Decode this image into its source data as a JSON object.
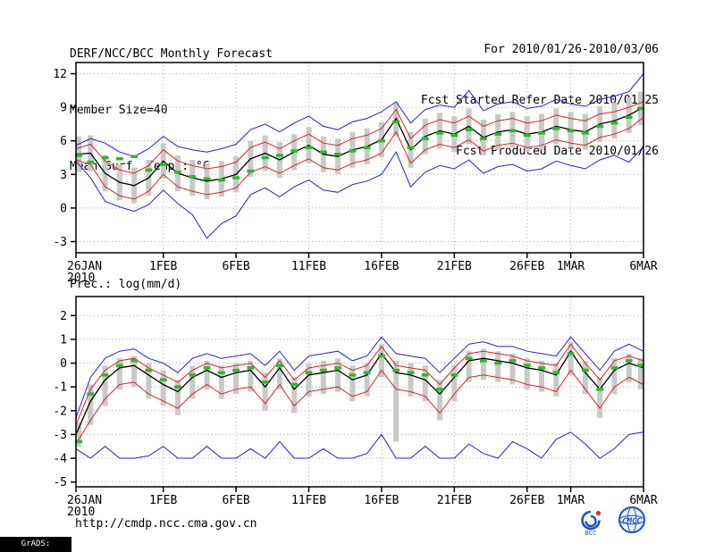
{
  "header": {
    "title": "DERF/NCC/BCC Monthly Forecast",
    "member_size": "Member Size=40",
    "for_range": "For 2010/01/26-2010/03/06",
    "fcst_refer": "Fcst Started Refer Date 2010/01/25",
    "fcst_produced": "Fcst Produced Date 2010/01/26"
  },
  "footer": {
    "url": "http://cmdp.ncc.cma.gov.cn",
    "grads_credit": "GrADS: COLA/IGES",
    "logos": [
      {
        "name": "BCC"
      },
      {
        "name": "CMCC"
      }
    ]
  },
  "colors": {
    "frame": "#000000",
    "grid": "#aaaaaa",
    "bar": "#c9c9c9",
    "dash": "#2eb82e",
    "mean": "#000000",
    "quartile": "#dd2222",
    "extreme": "#2222cc",
    "logo_blue": "#1a53c9",
    "logo_red": "#e03030"
  },
  "chart_data": [
    {
      "id": "temperature",
      "type": "line",
      "title": "Mean Surf. Temp.: °C",
      "ylim": [
        -4,
        13
      ],
      "yticks": [
        -3,
        0,
        3,
        6,
        9,
        12
      ],
      "x_days": 39,
      "xticks": [
        {
          "label": "26JAN",
          "sub": "2010",
          "day": 0
        },
        {
          "label": "1FEB",
          "day": 6
        },
        {
          "label": "6FEB",
          "day": 11
        },
        {
          "label": "11FEB",
          "day": 16
        },
        {
          "label": "16FEB",
          "day": 21
        },
        {
          "label": "21FEB",
          "day": 26
        },
        {
          "label": "26FEB",
          "day": 31
        },
        {
          "label": "1MAR",
          "day": 34
        },
        {
          "label": "6MAR",
          "day": 39
        }
      ],
      "series": [
        {
          "name": "ensemble-max",
          "color": "#2222cc",
          "width": 1,
          "values": [
            5.6,
            6.2,
            5.8,
            5.0,
            4.6,
            5.3,
            6.4,
            5.5,
            5.2,
            5.0,
            5.3,
            5.7,
            7.0,
            7.5,
            6.8,
            7.6,
            8.2,
            7.3,
            7.0,
            7.7,
            8.0,
            8.6,
            9.5,
            7.6,
            8.8,
            9.2,
            9.0,
            10.5,
            8.7,
            9.3,
            9.5,
            8.9,
            9.1,
            9.7,
            9.3,
            9.1,
            9.7,
            10.0,
            10.4,
            12.0
          ]
        },
        {
          "name": "ensemble-min",
          "color": "#2222cc",
          "width": 1,
          "values": [
            4.2,
            2.7,
            0.6,
            0.1,
            -0.3,
            0.3,
            1.6,
            0.4,
            -0.6,
            -2.7,
            -1.4,
            -0.7,
            1.2,
            1.8,
            1.0,
            1.9,
            2.5,
            1.6,
            1.4,
            2.1,
            2.4,
            3.0,
            5.0,
            1.9,
            3.2,
            3.8,
            3.5,
            4.3,
            3.1,
            3.7,
            3.9,
            3.3,
            3.5,
            4.2,
            3.8,
            3.5,
            4.3,
            4.7,
            4.1,
            5.5
          ]
        },
        {
          "name": "upper-quartile",
          "color": "#dd2222",
          "width": 1,
          "values": [
            5.3,
            5.7,
            4.2,
            3.4,
            3.1,
            3.8,
            5.2,
            4.2,
            3.8,
            3.5,
            3.7,
            4.1,
            5.4,
            5.9,
            5.3,
            6.0,
            6.6,
            5.8,
            5.6,
            6.2,
            6.5,
            7.1,
            8.8,
            6.2,
            7.4,
            7.9,
            7.6,
            8.2,
            7.3,
            7.8,
            8.0,
            7.6,
            7.8,
            8.3,
            8.0,
            7.8,
            8.4,
            8.6,
            9.0,
            9.5
          ]
        },
        {
          "name": "lower-quartile",
          "color": "#dd2222",
          "width": 1,
          "values": [
            4.3,
            3.9,
            1.9,
            1.1,
            0.8,
            1.5,
            3.0,
            1.9,
            1.5,
            1.2,
            1.4,
            1.8,
            3.2,
            3.7,
            3.1,
            3.8,
            4.4,
            3.6,
            3.4,
            4.0,
            4.3,
            4.9,
            6.8,
            4.0,
            5.2,
            5.7,
            5.4,
            6.1,
            5.1,
            5.6,
            5.8,
            5.4,
            5.6,
            6.1,
            5.8,
            5.6,
            6.3,
            6.6,
            7.1,
            8.1
          ]
        },
        {
          "name": "ensemble-mean",
          "color": "#000000",
          "width": 1.3,
          "values": [
            4.8,
            4.9,
            3.1,
            2.3,
            2.0,
            2.7,
            4.2,
            3.1,
            2.7,
            2.4,
            2.6,
            3.0,
            4.4,
            4.9,
            4.3,
            5.0,
            5.6,
            4.8,
            4.6,
            5.2,
            5.5,
            6.1,
            8.0,
            5.2,
            6.4,
            6.9,
            6.6,
            7.3,
            6.3,
            6.8,
            7.0,
            6.6,
            6.8,
            7.3,
            7.0,
            6.8,
            7.5,
            7.8,
            8.3,
            9.0
          ]
        }
      ],
      "bars": {
        "name": "ensemble-spread",
        "top": [
          6.4,
          6.5,
          4.7,
          3.9,
          3.6,
          4.3,
          5.8,
          4.7,
          4.3,
          4.0,
          4.2,
          4.6,
          6.0,
          6.5,
          5.9,
          6.6,
          7.2,
          6.4,
          6.2,
          6.8,
          7.1,
          7.7,
          9.4,
          6.8,
          8.0,
          8.5,
          8.2,
          8.9,
          7.9,
          8.4,
          8.6,
          8.2,
          8.4,
          8.9,
          8.6,
          8.4,
          9.1,
          9.4,
          9.9,
          10.4
        ],
        "bottom": [
          3.2,
          3.3,
          1.5,
          0.7,
          0.4,
          1.1,
          2.6,
          1.5,
          1.1,
          0.8,
          1.0,
          1.4,
          2.8,
          3.3,
          2.7,
          3.4,
          4.0,
          3.2,
          3.0,
          3.6,
          3.9,
          4.5,
          6.4,
          3.6,
          4.8,
          5.3,
          5.0,
          5.7,
          4.7,
          5.2,
          5.4,
          5.0,
          5.2,
          5.7,
          5.4,
          5.2,
          5.9,
          6.2,
          6.7,
          7.4
        ]
      },
      "dashes": {
        "name": "median-dash",
        "values": [
          4.7,
          4.1,
          4.5,
          4.4,
          4.6,
          3.4,
          3.9,
          3.2,
          2.8,
          2.6,
          2.5,
          2.7,
          3.3,
          4.5,
          4.7,
          5.1,
          5.4,
          5.0,
          4.8,
          5.1,
          5.4,
          6.0,
          7.7,
          5.4,
          6.2,
          6.7,
          6.5,
          7.0,
          6.2,
          6.6,
          6.9,
          6.5,
          6.7,
          7.1,
          6.9,
          6.7,
          7.3,
          7.6,
          8.1,
          8.9
        ]
      }
    },
    {
      "id": "precipitation",
      "type": "line",
      "title": "Prec.: log(mm/d)",
      "ylim": [
        -5.2,
        2.8
      ],
      "yticks": [
        -5,
        -4,
        -3,
        -2,
        -1,
        0,
        1,
        2
      ],
      "x_days": 39,
      "xticks": [
        {
          "label": "26JAN",
          "sub": "2010",
          "day": 0
        },
        {
          "label": "1FEB",
          "day": 6
        },
        {
          "label": "6FEB",
          "day": 11
        },
        {
          "label": "11FEB",
          "day": 16
        },
        {
          "label": "16FEB",
          "day": 21
        },
        {
          "label": "21FEB",
          "day": 26
        },
        {
          "label": "26FEB",
          "day": 31
        },
        {
          "label": "1MAR",
          "day": 34
        },
        {
          "label": "6MAR",
          "day": 39
        }
      ],
      "series": [
        {
          "name": "ensemble-max",
          "color": "#2222cc",
          "width": 1,
          "values": [
            -2.3,
            -0.6,
            0.2,
            0.5,
            0.6,
            0.2,
            0.0,
            -0.4,
            0.2,
            0.4,
            0.2,
            0.3,
            0.4,
            -0.1,
            0.5,
            -0.3,
            0.3,
            0.4,
            0.5,
            0.1,
            0.3,
            1.1,
            0.4,
            0.3,
            0.2,
            -0.4,
            0.2,
            0.8,
            0.9,
            0.7,
            0.7,
            0.5,
            0.4,
            0.3,
            1.1,
            0.4,
            -0.3,
            0.5,
            0.8,
            0.5
          ]
        },
        {
          "name": "ensemble-min",
          "color": "#2222cc",
          "width": 1,
          "values": [
            -3.6,
            -4.0,
            -3.5,
            -4.0,
            -4.0,
            -3.9,
            -3.5,
            -4.0,
            -4.0,
            -3.5,
            -4.0,
            -4.0,
            -3.6,
            -4.0,
            -3.3,
            -4.0,
            -4.0,
            -3.6,
            -4.0,
            -4.0,
            -3.8,
            -3.0,
            -4.0,
            -4.0,
            -3.5,
            -4.0,
            -4.0,
            -3.4,
            -3.8,
            -4.0,
            -3.3,
            -3.6,
            -4.0,
            -3.2,
            -2.9,
            -3.4,
            -4.0,
            -3.6,
            -3.0,
            -2.9
          ]
        },
        {
          "name": "upper-quartile",
          "color": "#dd2222",
          "width": 1,
          "values": [
            -2.6,
            -1.1,
            -0.3,
            0.1,
            0.2,
            -0.2,
            -0.5,
            -0.8,
            -0.3,
            0.0,
            -0.2,
            -0.1,
            0.0,
            -0.6,
            0.1,
            -0.7,
            -0.2,
            -0.1,
            0.0,
            -0.3,
            -0.1,
            0.7,
            -0.1,
            -0.2,
            -0.3,
            -0.9,
            -0.2,
            0.4,
            0.5,
            0.4,
            0.3,
            0.1,
            0.0,
            -0.1,
            0.8,
            0.0,
            -0.7,
            0.1,
            0.3,
            0.1
          ]
        },
        {
          "name": "lower-quartile",
          "color": "#dd2222",
          "width": 1,
          "values": [
            -3.4,
            -2.4,
            -1.5,
            -0.9,
            -0.8,
            -1.3,
            -1.6,
            -1.9,
            -1.3,
            -0.9,
            -1.3,
            -1.1,
            -1.0,
            -1.7,
            -0.9,
            -1.8,
            -1.2,
            -1.1,
            -1.0,
            -1.4,
            -1.2,
            -0.3,
            -1.1,
            -1.2,
            -1.4,
            -2.1,
            -1.3,
            -0.6,
            -0.5,
            -0.6,
            -0.7,
            -0.9,
            -1.0,
            -1.2,
            -0.3,
            -1.1,
            -1.9,
            -1.0,
            -0.6,
            -0.9
          ]
        },
        {
          "name": "ensemble-mean",
          "color": "#000000",
          "width": 1.3,
          "values": [
            -3.0,
            -1.6,
            -0.7,
            -0.2,
            -0.1,
            -0.5,
            -0.9,
            -1.2,
            -0.6,
            -0.3,
            -0.6,
            -0.4,
            -0.3,
            -1.0,
            -0.2,
            -1.1,
            -0.5,
            -0.4,
            -0.3,
            -0.7,
            -0.5,
            0.4,
            -0.4,
            -0.5,
            -0.7,
            -1.3,
            -0.6,
            0.1,
            0.2,
            0.1,
            0.0,
            -0.2,
            -0.3,
            -0.5,
            0.5,
            -0.4,
            -1.1,
            -0.3,
            0.0,
            -0.2
          ]
        }
      ],
      "bars": {
        "name": "ensemble-spread",
        "top": [
          -2.5,
          -0.9,
          -0.1,
          0.2,
          0.3,
          0.0,
          -0.3,
          -0.7,
          -0.1,
          0.1,
          -0.1,
          0.0,
          0.1,
          -0.4,
          0.2,
          -0.6,
          0.0,
          0.1,
          0.2,
          -0.1,
          0.0,
          0.8,
          0.1,
          0.0,
          -0.1,
          -0.7,
          -0.1,
          0.5,
          0.6,
          0.5,
          0.4,
          0.2,
          0.1,
          0.0,
          0.9,
          0.1,
          -0.6,
          0.2,
          0.4,
          0.2
        ],
        "bottom": [
          -3.5,
          -2.6,
          -1.8,
          -1.1,
          -1.0,
          -1.5,
          -1.8,
          -2.2,
          -1.5,
          -1.1,
          -1.5,
          -1.3,
          -1.2,
          -2.0,
          -1.1,
          -2.1,
          -1.4,
          -1.3,
          -1.2,
          -1.6,
          -1.4,
          -0.6,
          -3.3,
          -1.4,
          -1.6,
          -2.4,
          -1.6,
          -0.8,
          -0.7,
          -0.8,
          -0.9,
          -1.1,
          -1.2,
          -1.4,
          -0.5,
          -1.3,
          -2.3,
          -1.3,
          -0.8,
          -1.1
        ]
      },
      "dashes": {
        "name": "median-dash",
        "values": [
          -3.3,
          -1.3,
          -0.5,
          -0.1,
          0.1,
          -0.3,
          -0.7,
          -1.0,
          -0.5,
          -0.2,
          -0.4,
          -0.3,
          -0.2,
          -0.8,
          -0.1,
          -0.9,
          -0.4,
          -0.3,
          -0.2,
          -0.5,
          -0.4,
          0.3,
          -0.3,
          -0.4,
          -0.5,
          -1.1,
          -0.5,
          0.2,
          0.1,
          0.0,
          0.1,
          -0.1,
          -0.2,
          -0.4,
          0.4,
          -0.3,
          -1.1,
          -0.2,
          0.1,
          -0.1
        ]
      }
    }
  ]
}
